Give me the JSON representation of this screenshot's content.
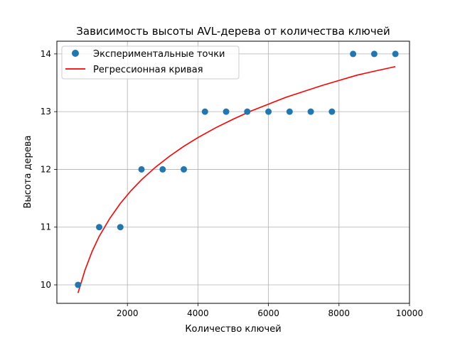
{
  "chart_data": {
    "type": "scatter",
    "title": "Зависимость высоты AVL-дерева от количества ключей",
    "xlabel": "Количество ключей",
    "ylabel": "Высота дерева",
    "xlim": [
      0,
      10000
    ],
    "ylim": [
      9.68,
      14.22
    ],
    "xticks": [
      2000,
      4000,
      6000,
      8000,
      10000
    ],
    "yticks": [
      10,
      11,
      12,
      13,
      14
    ],
    "grid": true,
    "legend_position": "top-left",
    "series": [
      {
        "name": "Экспериментальные точки",
        "kind": "scatter",
        "color": "#1f77b4",
        "x": [
          600,
          1200,
          1800,
          2400,
          3000,
          3600,
          4200,
          4800,
          5400,
          6000,
          6600,
          7200,
          7800,
          8400,
          9000,
          9600
        ],
        "y": [
          10,
          11,
          11,
          12,
          12,
          12,
          13,
          13,
          13,
          13,
          13,
          13,
          13,
          14,
          14,
          14
        ]
      },
      {
        "name": "Регрессионная кривая",
        "kind": "line",
        "color": "#ff0000",
        "x": [
          600,
          800,
          1000,
          1200,
          1500,
          1800,
          2100,
          2400,
          2800,
          3200,
          3600,
          4000,
          4500,
          5000,
          5500,
          6000,
          6500,
          7000,
          7500,
          8000,
          8500,
          9000,
          9600
        ],
        "y": [
          9.86,
          10.26,
          10.58,
          10.84,
          11.15,
          11.41,
          11.63,
          11.82,
          12.04,
          12.23,
          12.4,
          12.55,
          12.72,
          12.87,
          13.01,
          13.13,
          13.25,
          13.35,
          13.45,
          13.54,
          13.63,
          13.7,
          13.78
        ]
      }
    ]
  }
}
